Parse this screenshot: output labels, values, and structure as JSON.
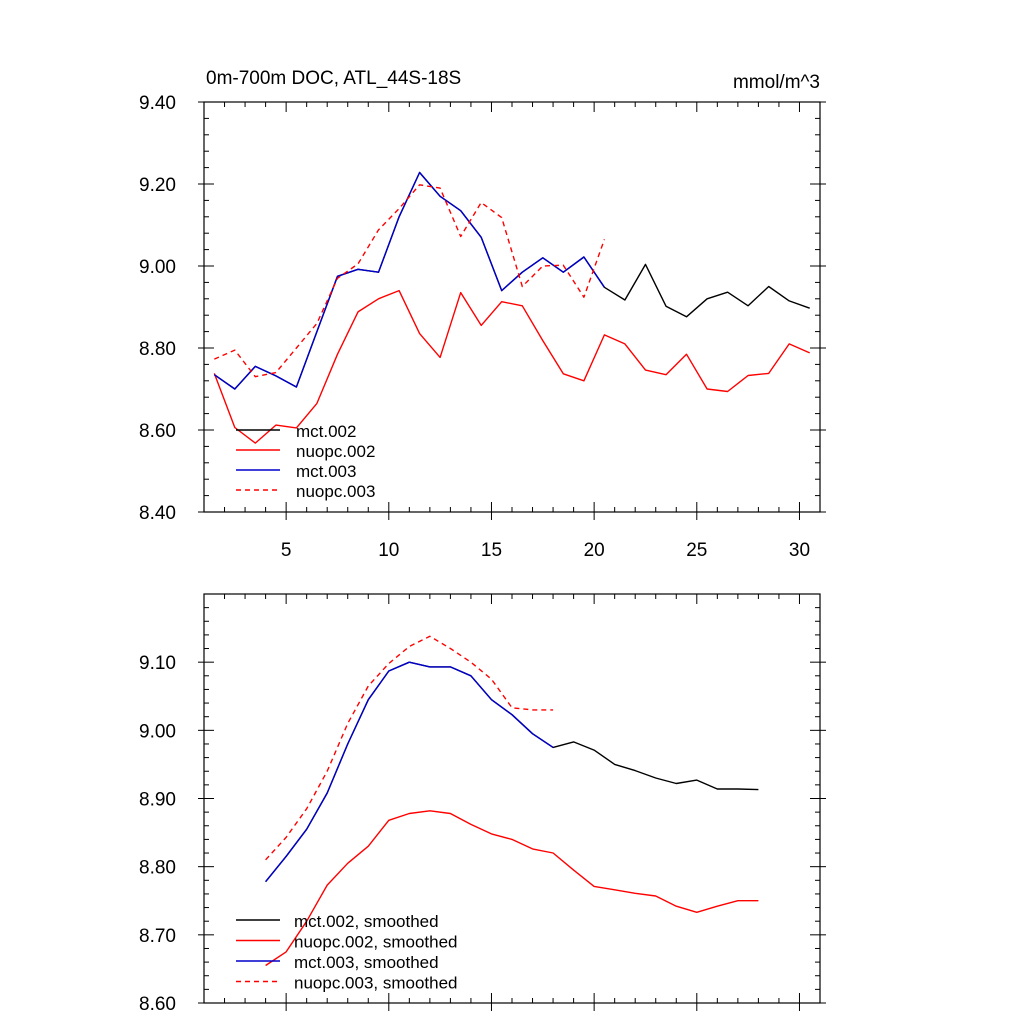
{
  "chart_data": [
    {
      "type": "line",
      "title": "0m-700m DOC, ATL_44S-18S",
      "units": "mmol/m^3",
      "xlabel": "",
      "ylabel": "",
      "xlim": [
        1,
        31
      ],
      "ylim": [
        8.4,
        9.4
      ],
      "xticks": [
        5,
        10,
        15,
        20,
        25,
        30
      ],
      "xtick_labels": [
        "5",
        "10",
        "15",
        "20",
        "25",
        "30"
      ],
      "yticks": [
        8.4,
        8.6,
        8.8,
        9.0,
        9.2,
        9.4
      ],
      "ytick_labels": [
        "8.40",
        "8.60",
        "8.80",
        "9.00",
        "9.20",
        "9.40"
      ],
      "legend_position": "bottom-left",
      "series": [
        {
          "name": "mct.002",
          "color": "#000000",
          "dash": "solid",
          "x": [
            1.5,
            2.5,
            3.5,
            4.5,
            5.5,
            6.5,
            7.5,
            8.5,
            9.5,
            10.5,
            11.5,
            12.5,
            13.5,
            14.5,
            15.5,
            16.5,
            17.5,
            18.5,
            19.5,
            20.5,
            21.5,
            22.5,
            23.5,
            24.5,
            25.5,
            26.5,
            27.5,
            28.5,
            29.5,
            30.5
          ],
          "y": [
            8.735,
            8.7,
            8.755,
            8.732,
            8.705,
            8.84,
            8.975,
            8.992,
            8.985,
            9.12,
            9.228,
            9.17,
            9.135,
            9.07,
            8.94,
            8.985,
            9.02,
            8.985,
            9.022,
            8.948,
            8.917,
            9.004,
            8.902,
            8.876,
            8.92,
            8.936,
            8.903,
            8.95,
            8.915,
            8.897
          ]
        },
        {
          "name": "nuopc.002",
          "color": "#ff0000",
          "dash": "solid",
          "x": [
            1.5,
            2.5,
            3.5,
            4.5,
            5.5,
            6.5,
            7.5,
            8.5,
            9.5,
            10.5,
            11.5,
            12.5,
            13.5,
            14.5,
            15.5,
            16.5,
            17.5,
            18.5,
            19.5,
            20.5,
            21.5,
            22.5,
            23.5,
            24.5,
            25.5,
            26.5,
            27.5,
            28.5,
            29.5,
            30.5
          ],
          "y": [
            8.738,
            8.606,
            8.568,
            8.612,
            8.605,
            8.665,
            8.785,
            8.888,
            8.92,
            8.94,
            8.835,
            8.777,
            8.935,
            8.855,
            8.913,
            8.903,
            8.818,
            8.737,
            8.72,
            8.832,
            8.81,
            8.746,
            8.735,
            8.785,
            8.7,
            8.694,
            8.733,
            8.738,
            8.81,
            8.788
          ]
        },
        {
          "name": "mct.003",
          "color": "#0000cc",
          "dash": "solid",
          "x": [
            1.5,
            2.5,
            3.5,
            4.5,
            5.5,
            6.5,
            7.5,
            8.5,
            9.5,
            10.5,
            11.5,
            12.5,
            13.5,
            14.5,
            15.5,
            16.5,
            17.5,
            18.5,
            19.5,
            20.5
          ],
          "y": [
            8.735,
            8.7,
            8.755,
            8.732,
            8.705,
            8.84,
            8.975,
            8.992,
            8.985,
            9.12,
            9.228,
            9.17,
            9.135,
            9.07,
            8.94,
            8.985,
            9.02,
            8.985,
            9.022,
            8.948
          ]
        },
        {
          "name": "nuopc.003",
          "color": "#ff0000",
          "dash": "dashed",
          "x": [
            1.5,
            2.5,
            3.5,
            4.5,
            5.5,
            6.5,
            7.5,
            8.5,
            9.5,
            10.5,
            11.5,
            12.5,
            13.5,
            14.5,
            15.5,
            16.5,
            17.5,
            18.5,
            19.5,
            20.5
          ],
          "y": [
            8.773,
            8.795,
            8.73,
            8.74,
            8.8,
            8.86,
            8.97,
            9.005,
            9.088,
            9.14,
            9.198,
            9.19,
            9.072,
            9.155,
            9.118,
            8.95,
            9.0,
            9.002,
            8.924,
            9.065
          ]
        }
      ]
    },
    {
      "type": "line",
      "title": "",
      "xlabel": "",
      "ylabel": "",
      "xlim": [
        1,
        31
      ],
      "ylim": [
        8.6,
        9.2
      ],
      "xticks": [
        5,
        10,
        15,
        20,
        25,
        30
      ],
      "yticks": [
        8.6,
        8.7,
        8.8,
        8.9,
        9.0,
        9.1
      ],
      "ytick_labels": [
        "8.60",
        "8.70",
        "8.80",
        "8.90",
        "9.00",
        "9.10"
      ],
      "legend_position": "bottom-left",
      "series": [
        {
          "name": "mct.002, smoothed",
          "color": "#000000",
          "dash": "solid",
          "x": [
            4,
            5,
            6,
            7,
            8,
            9,
            10,
            11,
            12,
            13,
            14,
            15,
            16,
            17,
            18,
            19,
            20,
            21,
            22,
            23,
            24,
            25,
            26,
            27,
            28
          ],
          "y": [
            8.778,
            8.815,
            8.855,
            8.908,
            8.98,
            9.045,
            9.087,
            9.1,
            9.093,
            9.093,
            9.08,
            9.045,
            9.023,
            8.995,
            8.975,
            8.983,
            8.971,
            8.95,
            8.941,
            8.93,
            8.922,
            8.927,
            8.914,
            8.914,
            8.913
          ]
        },
        {
          "name": "nuopc.002, smoothed",
          "color": "#ff0000",
          "dash": "solid",
          "x": [
            4,
            5,
            6,
            7,
            8,
            9,
            10,
            11,
            12,
            13,
            14,
            15,
            16,
            17,
            18,
            19,
            20,
            21,
            22,
            23,
            24,
            25,
            26,
            27,
            28
          ],
          "y": [
            8.655,
            8.675,
            8.72,
            8.773,
            8.805,
            8.83,
            8.868,
            8.878,
            8.882,
            8.878,
            8.862,
            8.848,
            8.84,
            8.826,
            8.82,
            8.795,
            8.771,
            8.766,
            8.761,
            8.757,
            8.742,
            8.733,
            8.742,
            8.75,
            8.75
          ]
        },
        {
          "name": "mct.003, smoothed",
          "color": "#0000cc",
          "dash": "solid",
          "x": [
            4,
            5,
            6,
            7,
            8,
            9,
            10,
            11,
            12,
            13,
            14,
            15,
            16,
            17,
            18
          ],
          "y": [
            8.778,
            8.815,
            8.855,
            8.908,
            8.98,
            9.045,
            9.087,
            9.1,
            9.093,
            9.093,
            9.08,
            9.045,
            9.023,
            8.995,
            8.975
          ]
        },
        {
          "name": "nuopc.003, smoothed",
          "color": "#ff0000",
          "dash": "dashed",
          "x": [
            4,
            5,
            6,
            7,
            8,
            9,
            10,
            11,
            12,
            13,
            14,
            15,
            16,
            17,
            18
          ],
          "y": [
            8.81,
            8.843,
            8.885,
            8.94,
            9.01,
            9.065,
            9.098,
            9.123,
            9.138,
            9.12,
            9.1,
            9.075,
            9.033,
            9.03,
            9.03
          ]
        }
      ]
    }
  ]
}
